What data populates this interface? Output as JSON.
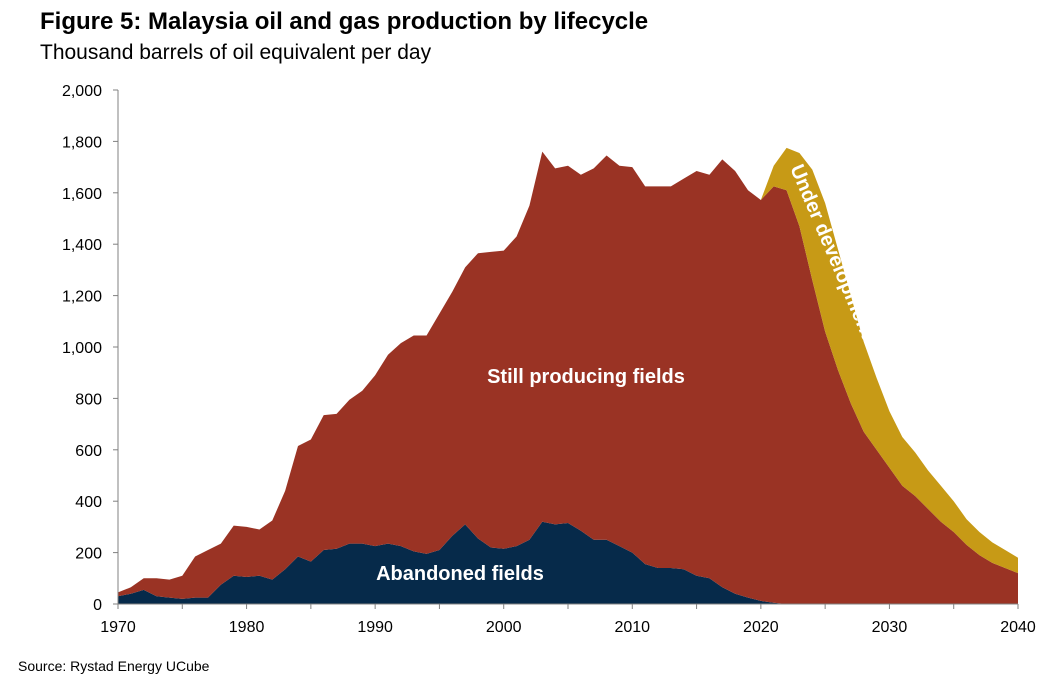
{
  "title": "Figure 5: Malaysia oil and gas production by lifecycle",
  "subtitle": "Thousand barrels of oil equivalent per day",
  "source": "Source: Rystad Energy UCube",
  "colors": {
    "abandoned": "#062a4a",
    "producing": "#9a3324",
    "development": "#c79a16",
    "axis": "#808080"
  },
  "chart_data": {
    "type": "area",
    "stacked": true,
    "title": "Figure 5: Malaysia oil and gas production by lifecycle",
    "ylabel": "Thousand barrels of oil equivalent per day",
    "xlim": [
      1970,
      2040
    ],
    "ylim": [
      0,
      2000
    ],
    "x_ticks": [
      "1970",
      "1980",
      "1990",
      "2000",
      "2010",
      "2020",
      "2030",
      "2040"
    ],
    "y_ticks": [
      "0",
      "200",
      "400",
      "600",
      "800",
      "1,000",
      "1,200",
      "1,400",
      "1,600",
      "1,800",
      "2,000"
    ],
    "x": [
      1970,
      1971,
      1972,
      1973,
      1974,
      1975,
      1976,
      1977,
      1978,
      1979,
      1980,
      1981,
      1982,
      1983,
      1984,
      1985,
      1986,
      1987,
      1988,
      1989,
      1990,
      1991,
      1992,
      1993,
      1994,
      1995,
      1996,
      1997,
      1998,
      1999,
      2000,
      2001,
      2002,
      2003,
      2004,
      2005,
      2006,
      2007,
      2008,
      2009,
      2010,
      2011,
      2012,
      2013,
      2014,
      2015,
      2016,
      2017,
      2018,
      2019,
      2020,
      2021,
      2022,
      2023,
      2024,
      2025,
      2026,
      2027,
      2028,
      2029,
      2030,
      2031,
      2032,
      2033,
      2034,
      2035,
      2036,
      2037,
      2038,
      2039,
      2040
    ],
    "series": [
      {
        "name": "Abandoned fields",
        "values": [
          30,
          40,
          55,
          30,
          25,
          20,
          25,
          25,
          75,
          110,
          105,
          110,
          95,
          135,
          185,
          165,
          210,
          215,
          235,
          235,
          225,
          235,
          225,
          205,
          195,
          210,
          265,
          310,
          255,
          220,
          215,
          225,
          250,
          320,
          310,
          315,
          285,
          250,
          250,
          225,
          200,
          155,
          140,
          140,
          135,
          110,
          100,
          65,
          40,
          25,
          12,
          5,
          0,
          0,
          0,
          0,
          0,
          0,
          0,
          0,
          0,
          0,
          0,
          0,
          0,
          0,
          0,
          0,
          0,
          0,
          0
        ]
      },
      {
        "name": "Still producing fields",
        "values": [
          15,
          25,
          45,
          70,
          70,
          90,
          160,
          185,
          160,
          195,
          195,
          180,
          230,
          305,
          430,
          475,
          525,
          525,
          560,
          595,
          665,
          735,
          790,
          840,
          850,
          920,
          950,
          1000,
          1110,
          1150,
          1160,
          1205,
          1300,
          1440,
          1385,
          1390,
          1385,
          1445,
          1495,
          1480,
          1500,
          1470,
          1485,
          1485,
          1520,
          1575,
          1570,
          1665,
          1645,
          1585,
          1560,
          1620,
          1610,
          1470,
          1260,
          1060,
          910,
          780,
          670,
          600,
          530,
          460,
          420,
          370,
          320,
          280,
          230,
          190,
          160,
          140,
          120
        ]
      },
      {
        "name": "Under development",
        "values": [
          0,
          0,
          0,
          0,
          0,
          0,
          0,
          0,
          0,
          0,
          0,
          0,
          0,
          0,
          0,
          0,
          0,
          0,
          0,
          0,
          0,
          0,
          0,
          0,
          0,
          0,
          0,
          0,
          0,
          0,
          0,
          0,
          0,
          0,
          0,
          0,
          0,
          0,
          0,
          0,
          0,
          0,
          0,
          0,
          0,
          0,
          0,
          0,
          0,
          0,
          0,
          80,
          165,
          285,
          430,
          500,
          470,
          420,
          350,
          280,
          220,
          190,
          170,
          150,
          140,
          120,
          100,
          90,
          80,
          70,
          60
        ]
      }
    ],
    "annotations": [
      "Still producing fields",
      "Abandoned fields",
      "Under development"
    ]
  }
}
